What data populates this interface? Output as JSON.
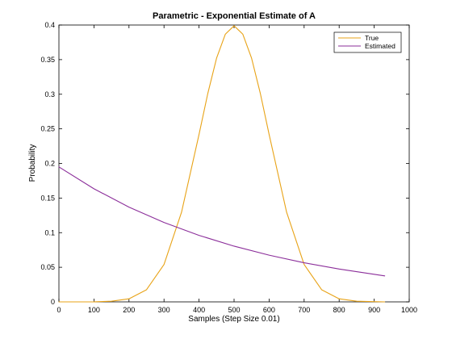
{
  "chart_data": {
    "type": "line",
    "title": "Parametric - Exponential Estimate of A",
    "xlabel": "Samples (Step Size 0.01)",
    "ylabel": "Probability",
    "xlim": [
      0,
      1000
    ],
    "ylim": [
      0,
      0.4
    ],
    "xticks": [
      0,
      100,
      200,
      300,
      400,
      500,
      600,
      700,
      800,
      900,
      1000
    ],
    "yticks": [
      0,
      0.05,
      0.1,
      0.15,
      0.2,
      0.25,
      0.3,
      0.35,
      0.4
    ],
    "ytick_labels": [
      "0",
      "0.05",
      "0.1",
      "0.15",
      "0.2",
      "0.25",
      "0.3",
      "0.35",
      "0.4"
    ],
    "grid": false,
    "legend_position": "top-right",
    "series": [
      {
        "name": "True",
        "color": "#E8A317",
        "x": [
          0,
          100,
          150,
          200,
          250,
          300,
          350,
          400,
          425,
          450,
          475,
          500,
          525,
          550,
          575,
          600,
          650,
          700,
          750,
          800,
          850,
          930
        ],
        "y": [
          0.0,
          0.0001,
          0.0009,
          0.0044,
          0.0175,
          0.054,
          0.1295,
          0.242,
          0.3011,
          0.3521,
          0.3867,
          0.3989,
          0.3867,
          0.3521,
          0.3011,
          0.242,
          0.1295,
          0.054,
          0.0175,
          0.0044,
          0.0009,
          0.0
        ]
      },
      {
        "name": "Estimated",
        "color": "#8B2E9A",
        "x": [
          0,
          100,
          200,
          300,
          400,
          500,
          600,
          700,
          800,
          930
        ],
        "y": [
          0.195,
          0.1634,
          0.1369,
          0.1147,
          0.0961,
          0.0805,
          0.0675,
          0.0565,
          0.0474,
          0.0375
        ]
      }
    ]
  }
}
